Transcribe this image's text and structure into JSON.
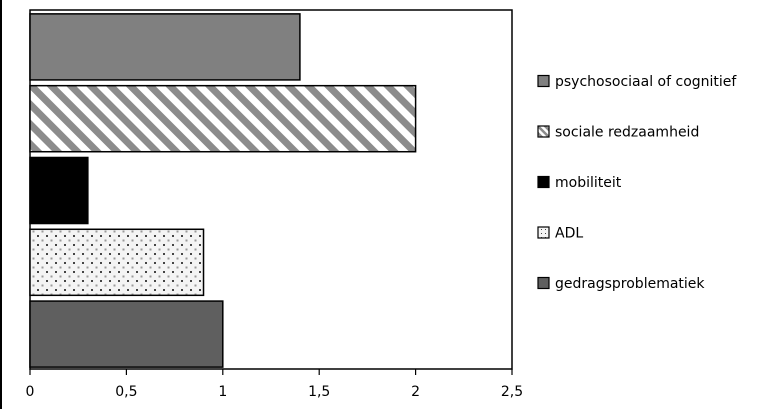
{
  "chart_data": {
    "type": "bar",
    "orientation": "horizontal",
    "categories": [
      "psychosociaal of cognitief",
      "sociale redzaamheid",
      "mobiliteit",
      "ADL",
      "gedragsproblematiek"
    ],
    "values": [
      1.4,
      2.0,
      0.3,
      0.9,
      1.0
    ],
    "xlim": [
      0,
      2.5
    ],
    "xticks": [
      "0",
      "0,5",
      "1",
      "1,5",
      "2",
      "2,5"
    ],
    "xtick_values": [
      0,
      0.5,
      1,
      1.5,
      2,
      2.5
    ],
    "grid": false,
    "legend": {
      "placement": "right",
      "entries": [
        "psychosociaal of cognitief",
        "sociale redzaamheid",
        "mobiliteit",
        "ADL",
        "gedragsproblematiek"
      ]
    },
    "series_styles": [
      {
        "fill": "#808080",
        "pattern": "solid"
      },
      {
        "fill": "#ffffff",
        "pattern": "diagonal-stripes",
        "stripe_color": "#8c8c8c"
      },
      {
        "fill": "#000000",
        "pattern": "solid"
      },
      {
        "fill": "#f4f4f4",
        "pattern": "dots",
        "dot_color": "#444444"
      },
      {
        "fill": "#5f5f5f",
        "pattern": "solid"
      }
    ]
  }
}
